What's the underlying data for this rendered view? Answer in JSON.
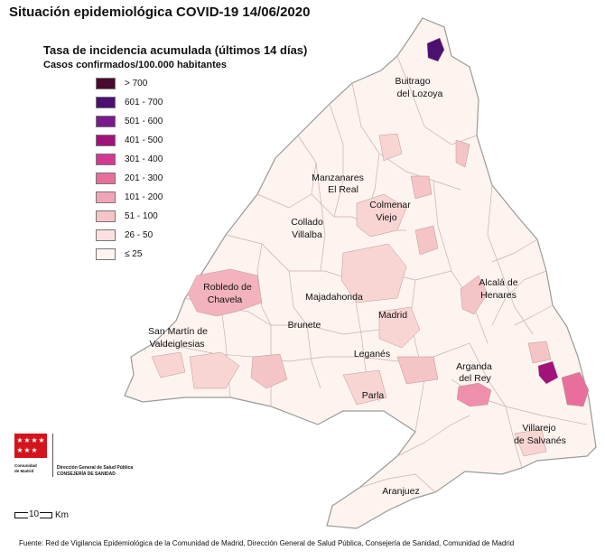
{
  "title": "Situación epidemiológica COVID-19  14/06/2020",
  "legend": {
    "title": "Tasa de incidencia acumulada (últimos 14 días)",
    "subtitle": "Casos confirmados/100.000 habitantes",
    "items": [
      {
        "label": "> 700",
        "color": "#4a0a2d"
      },
      {
        "label": "601 - 700",
        "color": "#4b1070"
      },
      {
        "label": "501 - 600",
        "color": "#7a1a8c"
      },
      {
        "label": "401 - 500",
        "color": "#a1137a"
      },
      {
        "label": "301 - 400",
        "color": "#d23a92"
      },
      {
        "label": "201 - 300",
        "color": "#e86f9c"
      },
      {
        "label": "101 - 200",
        "color": "#f3a3b8"
      },
      {
        "label": "51 - 100",
        "color": "#f5c4c6"
      },
      {
        "label": "26 - 50",
        "color": "#fae0de"
      },
      {
        "label": "≤ 25",
        "color": "#fdf3ef"
      }
    ]
  },
  "places": [
    {
      "line1": "Buitrago",
      "line2": "del Lozoya"
    },
    {
      "line1": "Manzanares",
      "line2": "El Real"
    },
    {
      "line1": "Colmenar",
      "line2": "Viejo"
    },
    {
      "line1": "Collado",
      "line2": "Villalba"
    },
    {
      "line1": "Alcalá de",
      "line2": "Henares"
    },
    {
      "line1": "Robledo de",
      "line2": "Chavela"
    },
    {
      "line1": "Majadahonda",
      "line2": ""
    },
    {
      "line1": "Madrid",
      "line2": ""
    },
    {
      "line1": "San Martín de",
      "line2": "Valdeiglesias"
    },
    {
      "line1": "Brunete",
      "line2": ""
    },
    {
      "line1": "Leganés",
      "line2": ""
    },
    {
      "line1": "Arganda",
      "line2": "del Rey"
    },
    {
      "line1": "Parla",
      "line2": ""
    },
    {
      "line1": "Villarejo",
      "line2": "de Salvanés"
    },
    {
      "line1": "Aranjuez",
      "line2": ""
    }
  ],
  "logo": {
    "org_line1": "Comunidad",
    "org_line2": "de Madrid",
    "dept_line1": "Dirección General de Salud Pública",
    "dept_line2": "CONSEJERÍA DE SANIDAD"
  },
  "scale": {
    "value": "10",
    "unit": "Km"
  },
  "source": "Fuente: Red de Vigilancia Epidemiológica de la Comunidad de Madrid, Dirección General de Salud Pública, Consejería de Sanidad, Comunidad de Madrid"
}
